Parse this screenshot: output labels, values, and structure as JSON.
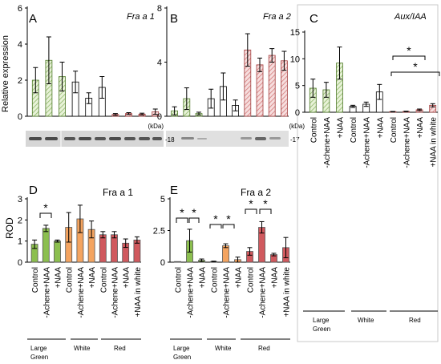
{
  "figure": {
    "ylabel_top": "Relative expression",
    "ylabel_bottom": "ROD",
    "kda_unit": "(kDa)",
    "blot_a_marker": "-18",
    "blot_b_marker": "-17",
    "sig_marker": "*",
    "group_labels": [
      "Large",
      "Green",
      "White",
      "Red"
    ],
    "colors": {
      "green_fill": "#e8f2d8",
      "green_hatch": "#8fb86a",
      "red_fill": "#f6dede",
      "red_hatch": "#d47a7a",
      "bar_d_green": "#8cbf4f",
      "bar_d_orange": "#f4a460",
      "bar_d_red": "#d0595e"
    }
  },
  "chart_data": [
    {
      "panel": "A",
      "type": "bar",
      "title": "Fra a 1",
      "ylabel": "Relative expression",
      "ylim": [
        0,
        6
      ],
      "yticks": [
        0,
        2,
        4,
        6
      ],
      "values": [
        2.0,
        3.1,
        2.2,
        1.9,
        1.0,
        1.6,
        0.1,
        0.15,
        0.12,
        0.25
      ],
      "errors": [
        0.7,
        1.3,
        0.8,
        0.6,
        0.3,
        0.6,
        0.05,
        0.05,
        0.05,
        0.15
      ],
      "fills": [
        "green",
        "green",
        "green",
        "white",
        "white",
        "white",
        "red",
        "red",
        "red",
        "red"
      ]
    },
    {
      "panel": "B",
      "type": "bar",
      "title": "Fra a 2",
      "ylim": [
        0,
        8
      ],
      "yticks": [
        0,
        4,
        8
      ],
      "values": [
        0.4,
        1.3,
        0.2,
        1.3,
        2.2,
        0.8,
        4.9,
        3.8,
        4.5,
        4.1
      ],
      "errors": [
        0.3,
        0.8,
        0.1,
        0.7,
        1.0,
        0.4,
        1.2,
        0.5,
        0.5,
        0.7
      ],
      "fills": [
        "green",
        "green",
        "green",
        "white",
        "white",
        "white",
        "red",
        "red",
        "red",
        "red"
      ]
    },
    {
      "panel": "C",
      "type": "bar",
      "title": "Aux/IAA",
      "ylim": [
        0,
        15
      ],
      "yticks": [
        0,
        5,
        10,
        15
      ],
      "categories": [
        "Control",
        "-Achene+NAA",
        "+NAA",
        "Control",
        "-Achene+NAA",
        "+NAA",
        "Control",
        "-Achene+NAA",
        "+NAA",
        "+NAA in white"
      ],
      "values": [
        4.5,
        4.2,
        9.2,
        1.1,
        1.5,
        3.8,
        0.1,
        0.15,
        0.45,
        1.3
      ],
      "errors": [
        1.7,
        1.4,
        3.0,
        0.2,
        0.4,
        1.4,
        0.05,
        0.05,
        0.15,
        0.3
      ],
      "fills": [
        "green",
        "green",
        "green",
        "white",
        "white",
        "white",
        "red",
        "red",
        "red",
        "red"
      ],
      "significance": [
        "*",
        "*"
      ]
    },
    {
      "panel": "D",
      "type": "bar",
      "title": "Fra a 1",
      "ylabel": "ROD",
      "ylim": [
        0,
        3
      ],
      "yticks": [
        0,
        1,
        2,
        3
      ],
      "categories": [
        "Control",
        "-Achene+NAA",
        "+NAA",
        "Control",
        "-Achene+NAA",
        "+NAA",
        "Control",
        "-Achene+NAA",
        "+NAA",
        "+NAA in white"
      ],
      "values": [
        0.85,
        1.6,
        1.0,
        1.65,
        2.05,
        1.55,
        1.3,
        1.3,
        0.9,
        1.05
      ],
      "errors": [
        0.2,
        0.15,
        0.05,
        0.7,
        0.65,
        0.4,
        0.15,
        0.15,
        0.2,
        0.15
      ],
      "fills": [
        "green",
        "green",
        "green",
        "orange",
        "orange",
        "orange",
        "red",
        "red",
        "red",
        "red"
      ],
      "significance": [
        "*"
      ]
    },
    {
      "panel": "E",
      "type": "bar",
      "title": "Fra a 2",
      "ylim": [
        0,
        5
      ],
      "yticks": [
        0,
        2.5,
        5
      ],
      "categories": [
        "Control",
        "-Achene+NAA",
        "+NAA",
        "Control",
        "-Achene+NAA",
        "+NAA",
        "Control",
        "-Achene+NAA",
        "+NAA",
        "+NAA in white"
      ],
      "values": [
        0.0,
        1.7,
        0.15,
        0.05,
        1.3,
        0.2,
        0.85,
        2.75,
        0.6,
        1.15
      ],
      "errors": [
        0.0,
        0.9,
        0.1,
        0.03,
        0.15,
        0.2,
        0.3,
        0.45,
        0.1,
        0.8
      ],
      "fills": [
        "green",
        "green",
        "green",
        "orange",
        "orange",
        "orange",
        "red",
        "red",
        "red",
        "red"
      ],
      "significance": [
        "*",
        "*",
        "*",
        "*",
        "*",
        "*"
      ]
    }
  ]
}
